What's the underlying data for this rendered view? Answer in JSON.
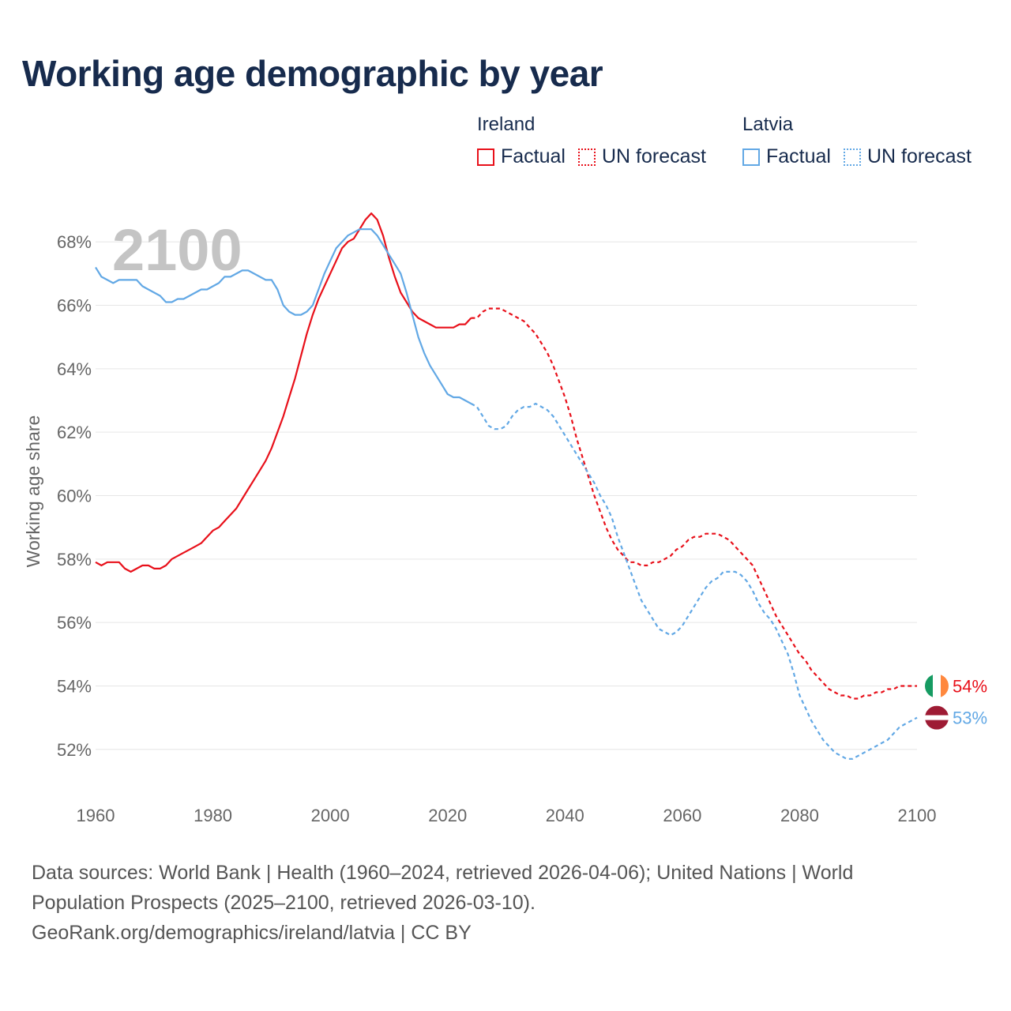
{
  "header": {
    "title": "Working age demographic by year"
  },
  "legend": {
    "groups": [
      {
        "country": "Ireland",
        "items": [
          {
            "label": "Factual",
            "style": "solid"
          },
          {
            "label": "UN forecast",
            "style": "dotted"
          }
        ],
        "color": "#e8101a"
      },
      {
        "country": "Latvia",
        "items": [
          {
            "label": "Factual",
            "style": "solid"
          },
          {
            "label": "UN forecast",
            "style": "dotted"
          }
        ],
        "color": "#62a8e5"
      }
    ]
  },
  "year_watermark": "2100",
  "footer": {
    "line1": "Data sources: World Bank | Health (1960–2024, retrieved 2026-04-06); United Nations | World",
    "line2": "Population Prospects (2025–2100, retrieved 2026-03-10).",
    "line3": "GeoRank.org/demographics/ireland/latvia | CC BY"
  },
  "chart_data": {
    "type": "line",
    "title": "Working age demographic by year",
    "xlabel": "",
    "ylabel": "Working age share",
    "xlim": [
      1960,
      2100
    ],
    "ylim": [
      50.6,
      69.4
    ],
    "x_ticks": [
      1960,
      1980,
      2000,
      2020,
      2040,
      2060,
      2080,
      2100
    ],
    "x_tick_labels": [
      "1960",
      "1980",
      "2000",
      "2020",
      "2040",
      "2060",
      "2080",
      "2100"
    ],
    "y_ticks": [
      52,
      54,
      56,
      58,
      60,
      62,
      64,
      66,
      68
    ],
    "y_tick_labels": [
      "52%",
      "54%",
      "56%",
      "58%",
      "60%",
      "62%",
      "64%",
      "66%",
      "68%"
    ],
    "grid": true,
    "forecast_start": 2024,
    "series": [
      {
        "name": "Ireland",
        "color": "#e8101a",
        "end_label": "54%",
        "flag": "ireland",
        "points": [
          [
            1960,
            57.9
          ],
          [
            1961,
            57.8
          ],
          [
            1962,
            57.9
          ],
          [
            1963,
            57.9
          ],
          [
            1964,
            57.9
          ],
          [
            1965,
            57.7
          ],
          [
            1966,
            57.6
          ],
          [
            1967,
            57.7
          ],
          [
            1968,
            57.8
          ],
          [
            1969,
            57.8
          ],
          [
            1970,
            57.7
          ],
          [
            1971,
            57.7
          ],
          [
            1972,
            57.8
          ],
          [
            1973,
            58.0
          ],
          [
            1974,
            58.1
          ],
          [
            1975,
            58.2
          ],
          [
            1976,
            58.3
          ],
          [
            1977,
            58.4
          ],
          [
            1978,
            58.5
          ],
          [
            1979,
            58.7
          ],
          [
            1980,
            58.9
          ],
          [
            1981,
            59.0
          ],
          [
            1982,
            59.2
          ],
          [
            1983,
            59.4
          ],
          [
            1984,
            59.6
          ],
          [
            1985,
            59.9
          ],
          [
            1986,
            60.2
          ],
          [
            1987,
            60.5
          ],
          [
            1988,
            60.8
          ],
          [
            1989,
            61.1
          ],
          [
            1990,
            61.5
          ],
          [
            1991,
            62.0
          ],
          [
            1992,
            62.5
          ],
          [
            1993,
            63.1
          ],
          [
            1994,
            63.7
          ],
          [
            1995,
            64.4
          ],
          [
            1996,
            65.1
          ],
          [
            1997,
            65.7
          ],
          [
            1998,
            66.2
          ],
          [
            1999,
            66.6
          ],
          [
            2000,
            67.0
          ],
          [
            2001,
            67.4
          ],
          [
            2002,
            67.8
          ],
          [
            2003,
            68.0
          ],
          [
            2004,
            68.1
          ],
          [
            2005,
            68.4
          ],
          [
            2006,
            68.7
          ],
          [
            2007,
            68.9
          ],
          [
            2008,
            68.7
          ],
          [
            2009,
            68.2
          ],
          [
            2010,
            67.5
          ],
          [
            2011,
            66.9
          ],
          [
            2012,
            66.4
          ],
          [
            2013,
            66.1
          ],
          [
            2014,
            65.8
          ],
          [
            2015,
            65.6
          ],
          [
            2016,
            65.5
          ],
          [
            2017,
            65.4
          ],
          [
            2018,
            65.3
          ],
          [
            2019,
            65.3
          ],
          [
            2020,
            65.3
          ],
          [
            2021,
            65.3
          ],
          [
            2022,
            65.4
          ],
          [
            2023,
            65.4
          ],
          [
            2024,
            65.6
          ],
          [
            2025,
            65.6
          ],
          [
            2026,
            65.8
          ],
          [
            2027,
            65.9
          ],
          [
            2028,
            65.9
          ],
          [
            2029,
            65.9
          ],
          [
            2030,
            65.8
          ],
          [
            2031,
            65.7
          ],
          [
            2032,
            65.6
          ],
          [
            2033,
            65.5
          ],
          [
            2034,
            65.3
          ],
          [
            2035,
            65.1
          ],
          [
            2036,
            64.8
          ],
          [
            2037,
            64.5
          ],
          [
            2038,
            64.1
          ],
          [
            2039,
            63.6
          ],
          [
            2040,
            63.1
          ],
          [
            2041,
            62.5
          ],
          [
            2042,
            61.8
          ],
          [
            2043,
            61.2
          ],
          [
            2044,
            60.6
          ],
          [
            2045,
            60.0
          ],
          [
            2046,
            59.5
          ],
          [
            2047,
            59.0
          ],
          [
            2048,
            58.6
          ],
          [
            2049,
            58.3
          ],
          [
            2050,
            58.1
          ],
          [
            2051,
            57.9
          ],
          [
            2052,
            57.9
          ],
          [
            2053,
            57.8
          ],
          [
            2054,
            57.8
          ],
          [
            2055,
            57.9
          ],
          [
            2056,
            57.9
          ],
          [
            2057,
            58.0
          ],
          [
            2058,
            58.1
          ],
          [
            2059,
            58.3
          ],
          [
            2060,
            58.4
          ],
          [
            2061,
            58.6
          ],
          [
            2062,
            58.7
          ],
          [
            2063,
            58.7
          ],
          [
            2064,
            58.8
          ],
          [
            2065,
            58.8
          ],
          [
            2066,
            58.8
          ],
          [
            2067,
            58.7
          ],
          [
            2068,
            58.6
          ],
          [
            2069,
            58.4
          ],
          [
            2070,
            58.2
          ],
          [
            2071,
            58.0
          ],
          [
            2072,
            57.8
          ],
          [
            2073,
            57.4
          ],
          [
            2074,
            57.0
          ],
          [
            2075,
            56.6
          ],
          [
            2076,
            56.2
          ],
          [
            2077,
            55.9
          ],
          [
            2078,
            55.6
          ],
          [
            2079,
            55.3
          ],
          [
            2080,
            55.0
          ],
          [
            2081,
            54.8
          ],
          [
            2082,
            54.5
          ],
          [
            2083,
            54.3
          ],
          [
            2084,
            54.1
          ],
          [
            2085,
            53.9
          ],
          [
            2086,
            53.8
          ],
          [
            2087,
            53.7
          ],
          [
            2088,
            53.7
          ],
          [
            2089,
            53.6
          ],
          [
            2090,
            53.6
          ],
          [
            2091,
            53.7
          ],
          [
            2092,
            53.7
          ],
          [
            2093,
            53.8
          ],
          [
            2094,
            53.8
          ],
          [
            2095,
            53.9
          ],
          [
            2096,
            53.9
          ],
          [
            2097,
            54.0
          ],
          [
            2098,
            54.0
          ],
          [
            2099,
            54.0
          ],
          [
            2100,
            54.0
          ]
        ]
      },
      {
        "name": "Latvia",
        "color": "#62a8e5",
        "end_label": "53%",
        "flag": "latvia",
        "points": [
          [
            1960,
            67.2
          ],
          [
            1961,
            66.9
          ],
          [
            1962,
            66.8
          ],
          [
            1963,
            66.7
          ],
          [
            1964,
            66.8
          ],
          [
            1965,
            66.8
          ],
          [
            1966,
            66.8
          ],
          [
            1967,
            66.8
          ],
          [
            1968,
            66.6
          ],
          [
            1969,
            66.5
          ],
          [
            1970,
            66.4
          ],
          [
            1971,
            66.3
          ],
          [
            1972,
            66.1
          ],
          [
            1973,
            66.1
          ],
          [
            1974,
            66.2
          ],
          [
            1975,
            66.2
          ],
          [
            1976,
            66.3
          ],
          [
            1977,
            66.4
          ],
          [
            1978,
            66.5
          ],
          [
            1979,
            66.5
          ],
          [
            1980,
            66.6
          ],
          [
            1981,
            66.7
          ],
          [
            1982,
            66.9
          ],
          [
            1983,
            66.9
          ],
          [
            1984,
            67.0
          ],
          [
            1985,
            67.1
          ],
          [
            1986,
            67.1
          ],
          [
            1987,
            67.0
          ],
          [
            1988,
            66.9
          ],
          [
            1989,
            66.8
          ],
          [
            1990,
            66.8
          ],
          [
            1991,
            66.5
          ],
          [
            1992,
            66.0
          ],
          [
            1993,
            65.8
          ],
          [
            1994,
            65.7
          ],
          [
            1995,
            65.7
          ],
          [
            1996,
            65.8
          ],
          [
            1997,
            66.0
          ],
          [
            1998,
            66.5
          ],
          [
            1999,
            67.0
          ],
          [
            2000,
            67.4
          ],
          [
            2001,
            67.8
          ],
          [
            2002,
            68.0
          ],
          [
            2003,
            68.2
          ],
          [
            2004,
            68.3
          ],
          [
            2005,
            68.4
          ],
          [
            2006,
            68.4
          ],
          [
            2007,
            68.4
          ],
          [
            2008,
            68.2
          ],
          [
            2009,
            67.9
          ],
          [
            2010,
            67.6
          ],
          [
            2011,
            67.3
          ],
          [
            2012,
            67.0
          ],
          [
            2013,
            66.4
          ],
          [
            2014,
            65.7
          ],
          [
            2015,
            65.0
          ],
          [
            2016,
            64.5
          ],
          [
            2017,
            64.1
          ],
          [
            2018,
            63.8
          ],
          [
            2019,
            63.5
          ],
          [
            2020,
            63.2
          ],
          [
            2021,
            63.1
          ],
          [
            2022,
            63.1
          ],
          [
            2023,
            63.0
          ],
          [
            2024,
            62.9
          ],
          [
            2025,
            62.8
          ],
          [
            2026,
            62.5
          ],
          [
            2027,
            62.2
          ],
          [
            2028,
            62.1
          ],
          [
            2029,
            62.1
          ],
          [
            2030,
            62.2
          ],
          [
            2031,
            62.5
          ],
          [
            2032,
            62.7
          ],
          [
            2033,
            62.8
          ],
          [
            2034,
            62.8
          ],
          [
            2035,
            62.9
          ],
          [
            2036,
            62.8
          ],
          [
            2037,
            62.7
          ],
          [
            2038,
            62.5
          ],
          [
            2039,
            62.2
          ],
          [
            2040,
            61.9
          ],
          [
            2041,
            61.6
          ],
          [
            2042,
            61.3
          ],
          [
            2043,
            61.0
          ],
          [
            2044,
            60.7
          ],
          [
            2045,
            60.4
          ],
          [
            2046,
            60.0
          ],
          [
            2047,
            59.7
          ],
          [
            2048,
            59.3
          ],
          [
            2049,
            58.7
          ],
          [
            2050,
            58.2
          ],
          [
            2051,
            57.7
          ],
          [
            2052,
            57.2
          ],
          [
            2053,
            56.7
          ],
          [
            2054,
            56.4
          ],
          [
            2055,
            56.1
          ],
          [
            2056,
            55.8
          ],
          [
            2057,
            55.7
          ],
          [
            2058,
            55.6
          ],
          [
            2059,
            55.7
          ],
          [
            2060,
            55.9
          ],
          [
            2061,
            56.2
          ],
          [
            2062,
            56.5
          ],
          [
            2063,
            56.8
          ],
          [
            2064,
            57.1
          ],
          [
            2065,
            57.3
          ],
          [
            2066,
            57.4
          ],
          [
            2067,
            57.6
          ],
          [
            2068,
            57.6
          ],
          [
            2069,
            57.6
          ],
          [
            2070,
            57.5
          ],
          [
            2071,
            57.3
          ],
          [
            2072,
            57.0
          ],
          [
            2073,
            56.6
          ],
          [
            2074,
            56.3
          ],
          [
            2075,
            56.1
          ],
          [
            2076,
            55.8
          ],
          [
            2077,
            55.4
          ],
          [
            2078,
            55.0
          ],
          [
            2079,
            54.4
          ],
          [
            2080,
            53.7
          ],
          [
            2081,
            53.3
          ],
          [
            2082,
            52.9
          ],
          [
            2083,
            52.6
          ],
          [
            2084,
            52.3
          ],
          [
            2085,
            52.1
          ],
          [
            2086,
            51.9
          ],
          [
            2087,
            51.8
          ],
          [
            2088,
            51.7
          ],
          [
            2089,
            51.7
          ],
          [
            2090,
            51.8
          ],
          [
            2091,
            51.9
          ],
          [
            2092,
            52.0
          ],
          [
            2093,
            52.1
          ],
          [
            2094,
            52.2
          ],
          [
            2095,
            52.3
          ],
          [
            2096,
            52.5
          ],
          [
            2097,
            52.7
          ],
          [
            2098,
            52.8
          ],
          [
            2099,
            52.9
          ],
          [
            2100,
            53.0
          ]
        ]
      }
    ]
  }
}
